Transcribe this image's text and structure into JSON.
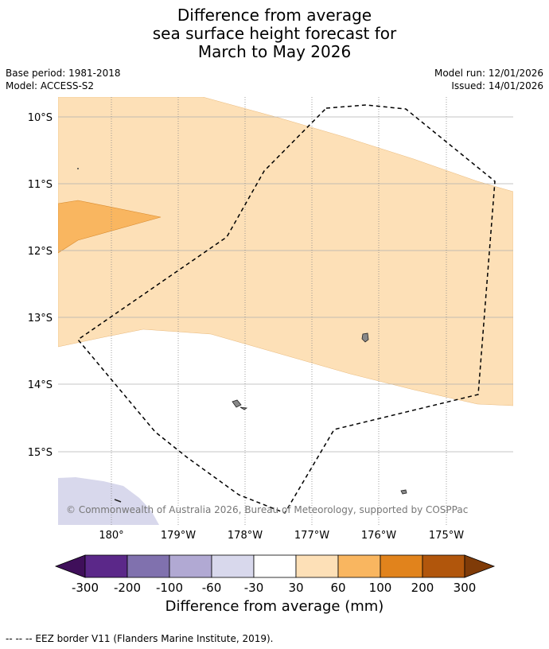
{
  "title": {
    "line1": "Difference from average",
    "line2": "sea surface height forecast for",
    "line3": "March to May 2026"
  },
  "meta": {
    "base_period": "Base period: 1981-2018",
    "model": "Model: ACCESS-S2",
    "model_run": "Model run: 12/01/2026",
    "issued": "Issued: 14/01/2026"
  },
  "map": {
    "lat_labels": [
      "10°S",
      "11°S",
      "12°S",
      "13°S",
      "14°S",
      "15°S"
    ],
    "lon_labels": [
      "180°",
      "179°W",
      "178°W",
      "177°W",
      "176°W",
      "175°W"
    ],
    "attribution": "© Commonwealth of Australia 2026, Bureau of Meteorology, supported by COSPPac"
  },
  "colorbar": {
    "labels": [
      "-300",
      "-200",
      "-100",
      "-60",
      "-30",
      "30",
      "60",
      "100",
      "200",
      "300"
    ],
    "colors": [
      "#3f0f5a",
      "#5b2889",
      "#8071ae",
      "#b1a9d3",
      "#d8d8ec",
      "#ffffff",
      "#fde0b7",
      "#f9b660",
      "#e1831c",
      "#b1560c",
      "#7f3b08"
    ],
    "title": "Difference from average (mm)"
  },
  "footer": "-- -- -- EEZ border V11 (Flanders Marine Institute, 2019)."
}
